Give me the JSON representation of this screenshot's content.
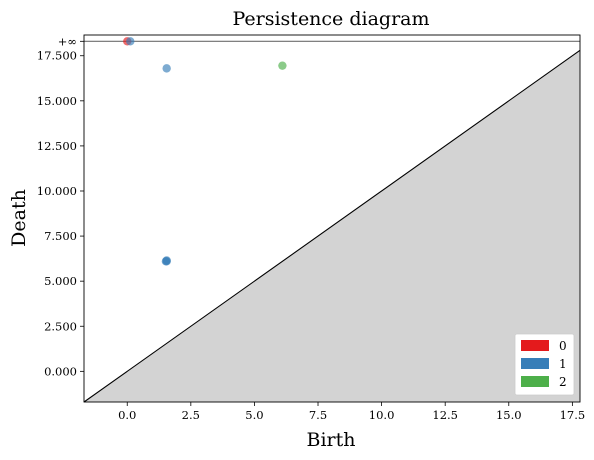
{
  "chart_data": {
    "type": "scatter",
    "title": "Persistence diagram",
    "xlabel": "Birth",
    "ylabel": "Death",
    "xlim": [
      -1.7,
      17.8
    ],
    "ylim": [
      -1.7,
      18.65
    ],
    "x_ticks": [
      0.0,
      2.5,
      5.0,
      7.5,
      10.0,
      12.5,
      15.0,
      17.5
    ],
    "x_tick_labels": [
      "0.0",
      "2.5",
      "5.0",
      "7.5",
      "10.0",
      "12.5",
      "15.0",
      "17.5"
    ],
    "y_ticks": [
      0,
      2.5,
      5,
      7.5,
      10,
      12.5,
      15,
      17.5
    ],
    "y_tick_labels": [
      "0.000",
      "2.500",
      "5.000",
      "7.500",
      "10.000",
      "12.500",
      "15.000",
      "17.500"
    ],
    "infinity_value": 18.3,
    "infinity_label": "+∞",
    "legend_position": "bottom-right",
    "series": [
      {
        "name": "0",
        "color": "#e41a1c",
        "points": [
          [
            0.0,
            18.3
          ]
        ]
      },
      {
        "name": "1",
        "color": "#377eb8",
        "points": [
          [
            0.12,
            18.3
          ],
          [
            1.55,
            16.8
          ],
          [
            1.55,
            6.1
          ],
          [
            1.55,
            6.15
          ],
          [
            1.52,
            6.1
          ]
        ]
      },
      {
        "name": "2",
        "color": "#4daf4a",
        "points": [
          [
            6.1,
            16.95
          ]
        ]
      }
    ]
  }
}
